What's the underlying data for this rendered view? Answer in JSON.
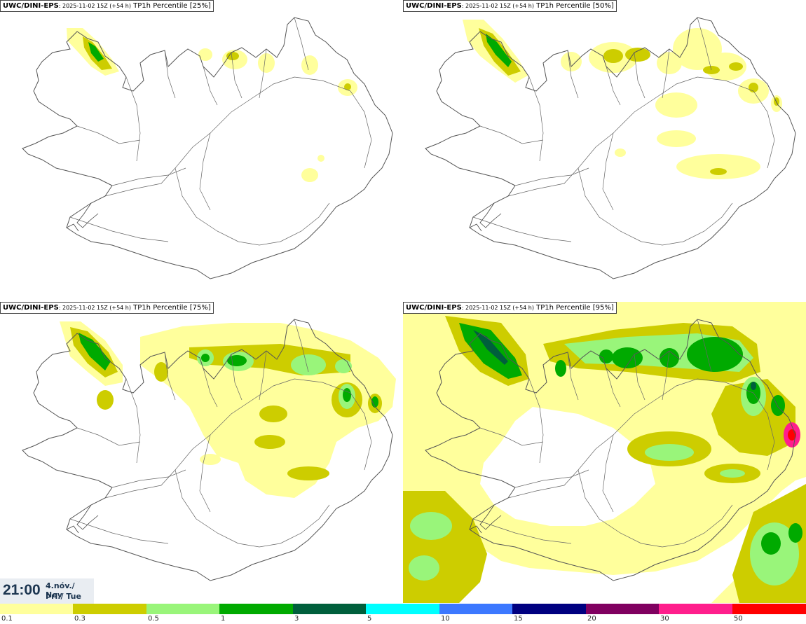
{
  "panels": [
    {
      "model": "UWC/DINI-EPS",
      "run": ": 2025-11-02 15Z (+54 h)",
      "label": "TP1h Percentile [25%]",
      "level": 0
    },
    {
      "model": "UWC/DINI-EPS",
      "run": ": 2025-11-02 15Z (+54 h)",
      "label": "TP1h Percentile [50%]",
      "level": 1
    },
    {
      "model": "UWC/DINI-EPS",
      "run": ": 2025-11-02 15Z (+54 h)",
      "label": "TP1h Percentile [75%]",
      "level": 2
    },
    {
      "model": "UWC/DINI-EPS",
      "run": ": 2025-11-02 15Z (+54 h)",
      "label": "TP1h Percentile [95%]",
      "level": 3
    }
  ],
  "valid_time": {
    "hour": "21:00",
    "date": "4.nóv./ Nov",
    "weekday": "Þri./ Tue"
  },
  "legend": {
    "ticks": [
      "0.1",
      "0.3",
      "0.5",
      "1",
      "3",
      "5",
      "10",
      "15",
      "20",
      "30",
      "50"
    ],
    "colors": [
      "#ffff9c",
      "#cdcd00",
      "#99f57a",
      "#00aa00",
      "#005f3c",
      "#00ffff",
      "#3c78ff",
      "#000080",
      "#800060",
      "#ff1e8c",
      "#ff0000"
    ]
  },
  "precip_colors": {
    "light": "#ffff9c",
    "moderate": "#cdcd00",
    "heavier": "#99f57a",
    "heavy": "#00aa00",
    "very_heavy": "#005f3c"
  }
}
